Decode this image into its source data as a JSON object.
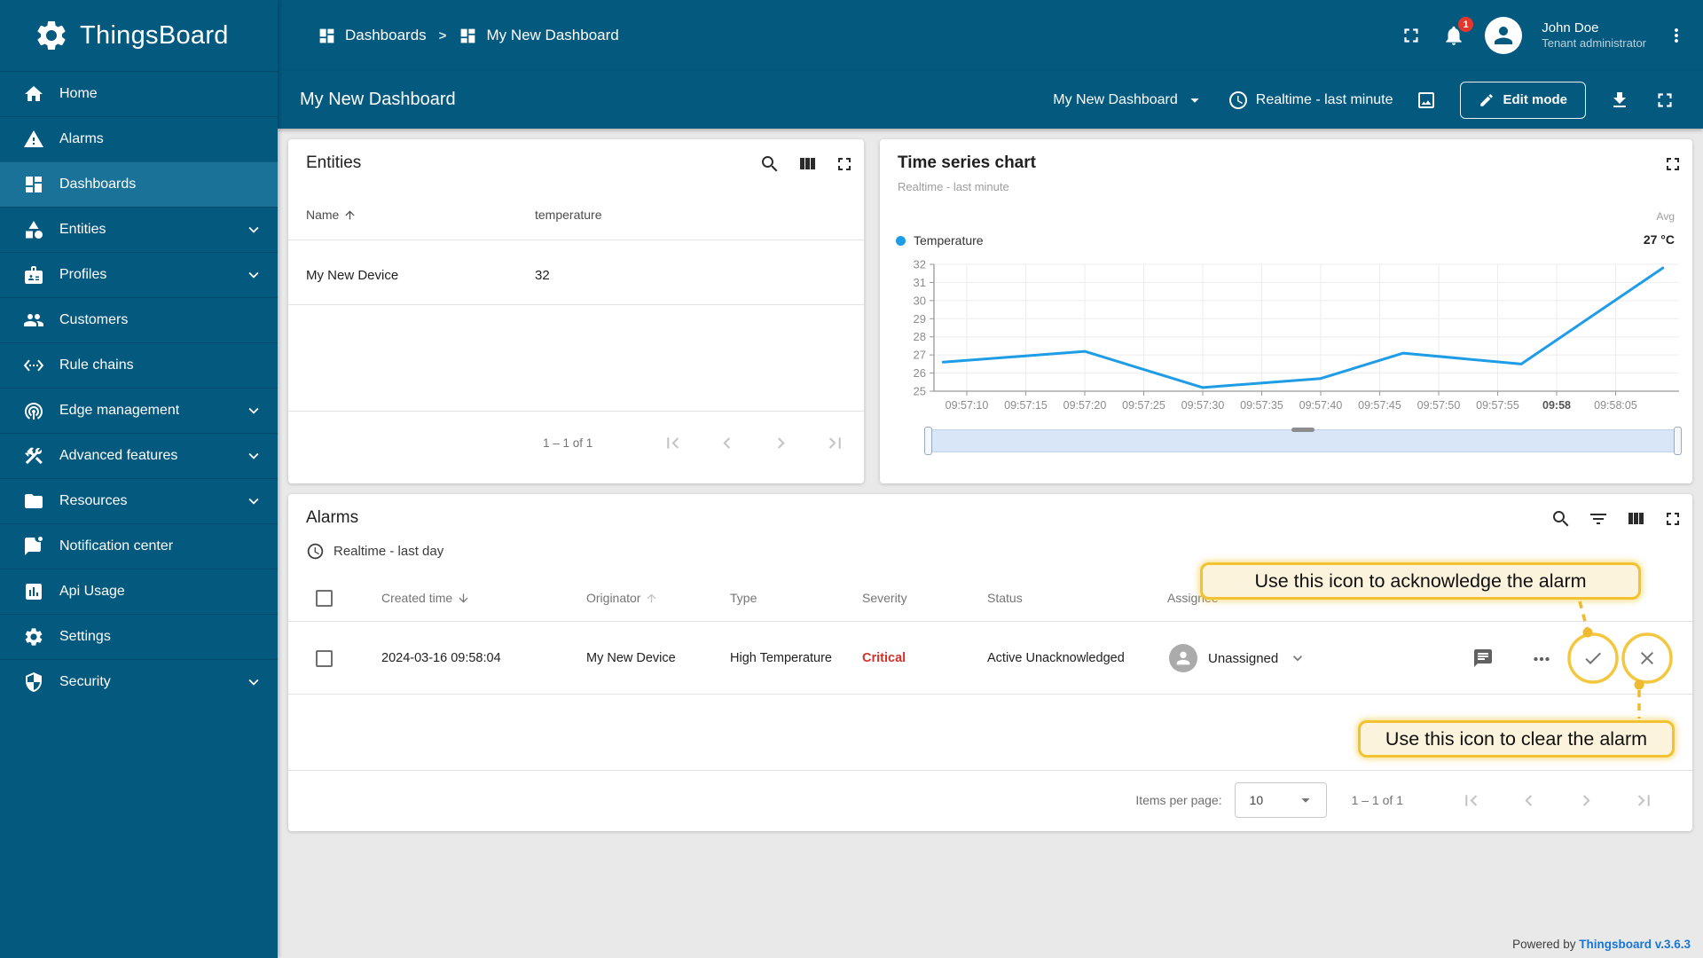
{
  "app": {
    "name": "ThingsBoard"
  },
  "sidebar": {
    "items": [
      {
        "label": "Home",
        "icon": "home"
      },
      {
        "label": "Alarms",
        "icon": "warning"
      },
      {
        "label": "Dashboards",
        "icon": "dashboard",
        "active": true
      },
      {
        "label": "Entities",
        "icon": "category",
        "expandable": true
      },
      {
        "label": "Profiles",
        "icon": "badge",
        "expandable": true
      },
      {
        "label": "Customers",
        "icon": "people"
      },
      {
        "label": "Rule chains",
        "icon": "rule-chain"
      },
      {
        "label": "Edge management",
        "icon": "edge",
        "expandable": true
      },
      {
        "label": "Advanced features",
        "icon": "tools",
        "expandable": true
      },
      {
        "label": "Resources",
        "icon": "folder",
        "expandable": true
      },
      {
        "label": "Notification center",
        "icon": "notification"
      },
      {
        "label": "Api Usage",
        "icon": "api-usage"
      },
      {
        "label": "Settings",
        "icon": "settings"
      },
      {
        "label": "Security",
        "icon": "security",
        "expandable": true
      }
    ]
  },
  "header": {
    "breadcrumb": {
      "level1": "Dashboards",
      "level2": "My New Dashboard"
    },
    "notifications_badge": "1",
    "user": {
      "name": "John Doe",
      "role": "Tenant administrator"
    }
  },
  "toolbar": {
    "page_title": "My New Dashboard",
    "dashboard_select": "My New Dashboard",
    "timewindow": "Realtime - last minute",
    "edit_mode_label": "Edit mode"
  },
  "entities_widget": {
    "title": "Entities",
    "columns": {
      "name": "Name",
      "telemetry": "temperature"
    },
    "rows": [
      {
        "name": "My New Device",
        "temperature": "32"
      }
    ],
    "pagination": "1 – 1 of 1"
  },
  "timeseries_widget": {
    "title": "Time series chart",
    "subtitle": "Realtime - last minute",
    "legend": {
      "series": "Temperature",
      "agg_label": "Avg",
      "agg_value": "27 °C"
    },
    "chart_data": {
      "type": "line",
      "title": "Time series chart",
      "series": [
        {
          "name": "Temperature",
          "color": "#1e9ce6",
          "points": [
            [
              "09:57:08",
              26.6
            ],
            [
              "09:57:20",
              27.2
            ],
            [
              "09:57:30",
              25.2
            ],
            [
              "09:57:40",
              25.7
            ],
            [
              "09:57:47",
              27.1
            ],
            [
              "09:57:57",
              26.5
            ],
            [
              "09:58:09",
              31.8
            ]
          ]
        }
      ],
      "x_ticks": [
        "09:57:10",
        "09:57:15",
        "09:57:20",
        "09:57:25",
        "09:57:30",
        "09:57:35",
        "09:57:40",
        "09:57:45",
        "09:57:50",
        "09:57:55",
        "09:58",
        "09:58:05"
      ],
      "x_range": [
        "09:57:07",
        "09:58:10"
      ],
      "y_ticks": [
        32,
        31,
        30,
        29,
        28,
        27,
        26,
        25
      ],
      "ylim": [
        25,
        32
      ],
      "grid": true,
      "legend_position": "top-left"
    }
  },
  "alarms_widget": {
    "title": "Alarms",
    "timewindow": "Realtime - last day",
    "columns": [
      "Created time",
      "Originator",
      "Type",
      "Severity",
      "Status",
      "Assignee"
    ],
    "rows": [
      {
        "created_time": "2024-03-16 09:58:04",
        "originator": "My New Device",
        "type": "High Temperature",
        "severity": "Critical",
        "status": "Active Unacknowledged",
        "assignee": "Unassigned"
      }
    ],
    "severity_color": "#d1332a",
    "items_per_page_label": "Items per page:",
    "items_per_page": "10",
    "pagination": "1 – 1 of 1"
  },
  "annotations": {
    "acknowledge": "Use this icon to acknowledge the alarm",
    "clear": "Use this icon to clear the alarm"
  },
  "footer": {
    "powered_by": "Powered by",
    "version_link": "Thingsboard v.3.6.3"
  }
}
